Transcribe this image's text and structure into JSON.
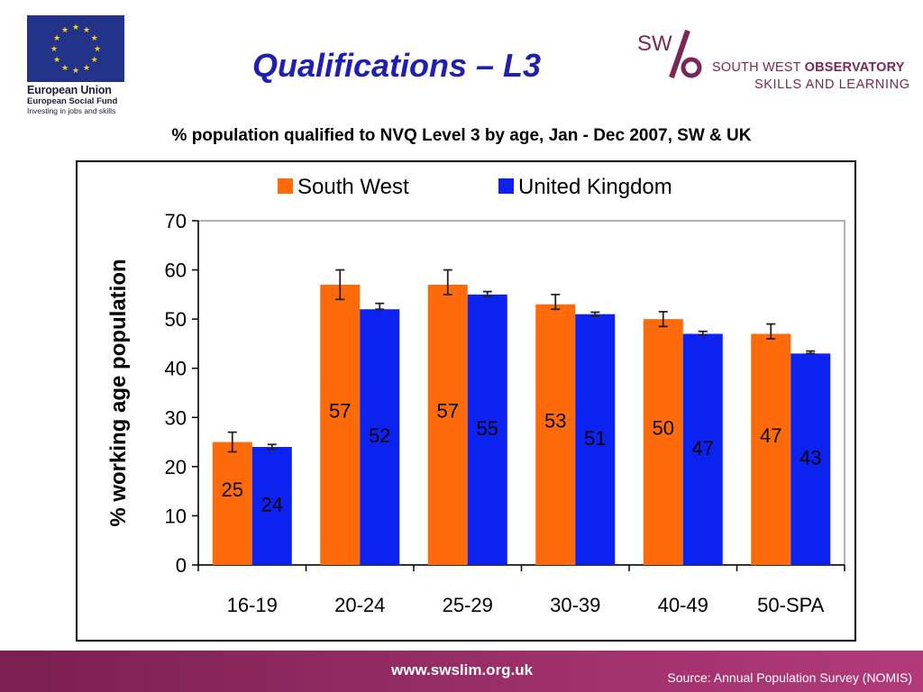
{
  "logos": {
    "eu": {
      "name": "European Union",
      "fund": "European Social Fund",
      "tagline": "Investing in jobs and skills",
      "flag_color": "#23338a",
      "star_color": "#f4d21c"
    },
    "sw": {
      "mark": "SW",
      "org_plain": "SOUTH WEST ",
      "org_bold": "OBSERVATORY",
      "sub": "SKILLS AND LEARNING",
      "color": "#7b2756"
    }
  },
  "page": {
    "title": "Qualifications – L3",
    "subtitle": "%  population qualified to NVQ Level 3 by age, Jan - Dec 2007, SW & UK"
  },
  "chart_data": {
    "type": "bar",
    "categories": [
      "16-19",
      "20-24",
      "25-29",
      "30-39",
      "40-49",
      "50-SPA"
    ],
    "series": [
      {
        "name": "South West",
        "color": "#ff6a0a",
        "values": [
          25,
          57,
          57,
          53,
          50,
          47
        ],
        "error_bars": [
          [
            23,
            27
          ],
          [
            54,
            60
          ],
          [
            55,
            60
          ],
          [
            52,
            55
          ],
          [
            48.5,
            51.5
          ],
          [
            46,
            49
          ]
        ]
      },
      {
        "name": "United Kingdom",
        "color": "#0c22f0",
        "values": [
          24,
          52,
          55,
          51,
          47,
          43
        ],
        "error_bars": [
          [
            23.5,
            24.5
          ],
          [
            52,
            53.2
          ],
          [
            54.6,
            55.6
          ],
          [
            50.6,
            51.4
          ],
          [
            46.8,
            47.5
          ],
          [
            43,
            43.5
          ]
        ]
      }
    ],
    "data_labels": {
      "South West": [
        "25",
        "57",
        "57",
        "53",
        "50",
        "47"
      ],
      "United Kingdom": [
        "24",
        "52",
        "55",
        "51",
        "47",
        "43"
      ]
    },
    "ylabel": "% working age population",
    "xlabel": "",
    "ylim": [
      0,
      70
    ],
    "yticks": [
      0,
      10,
      20,
      30,
      40,
      50,
      60,
      70
    ],
    "legend_position": "top",
    "grid": false
  },
  "footer": {
    "url": "www.swslim.org.uk",
    "source": "Source: Annual Population Survey (NOMIS)"
  }
}
